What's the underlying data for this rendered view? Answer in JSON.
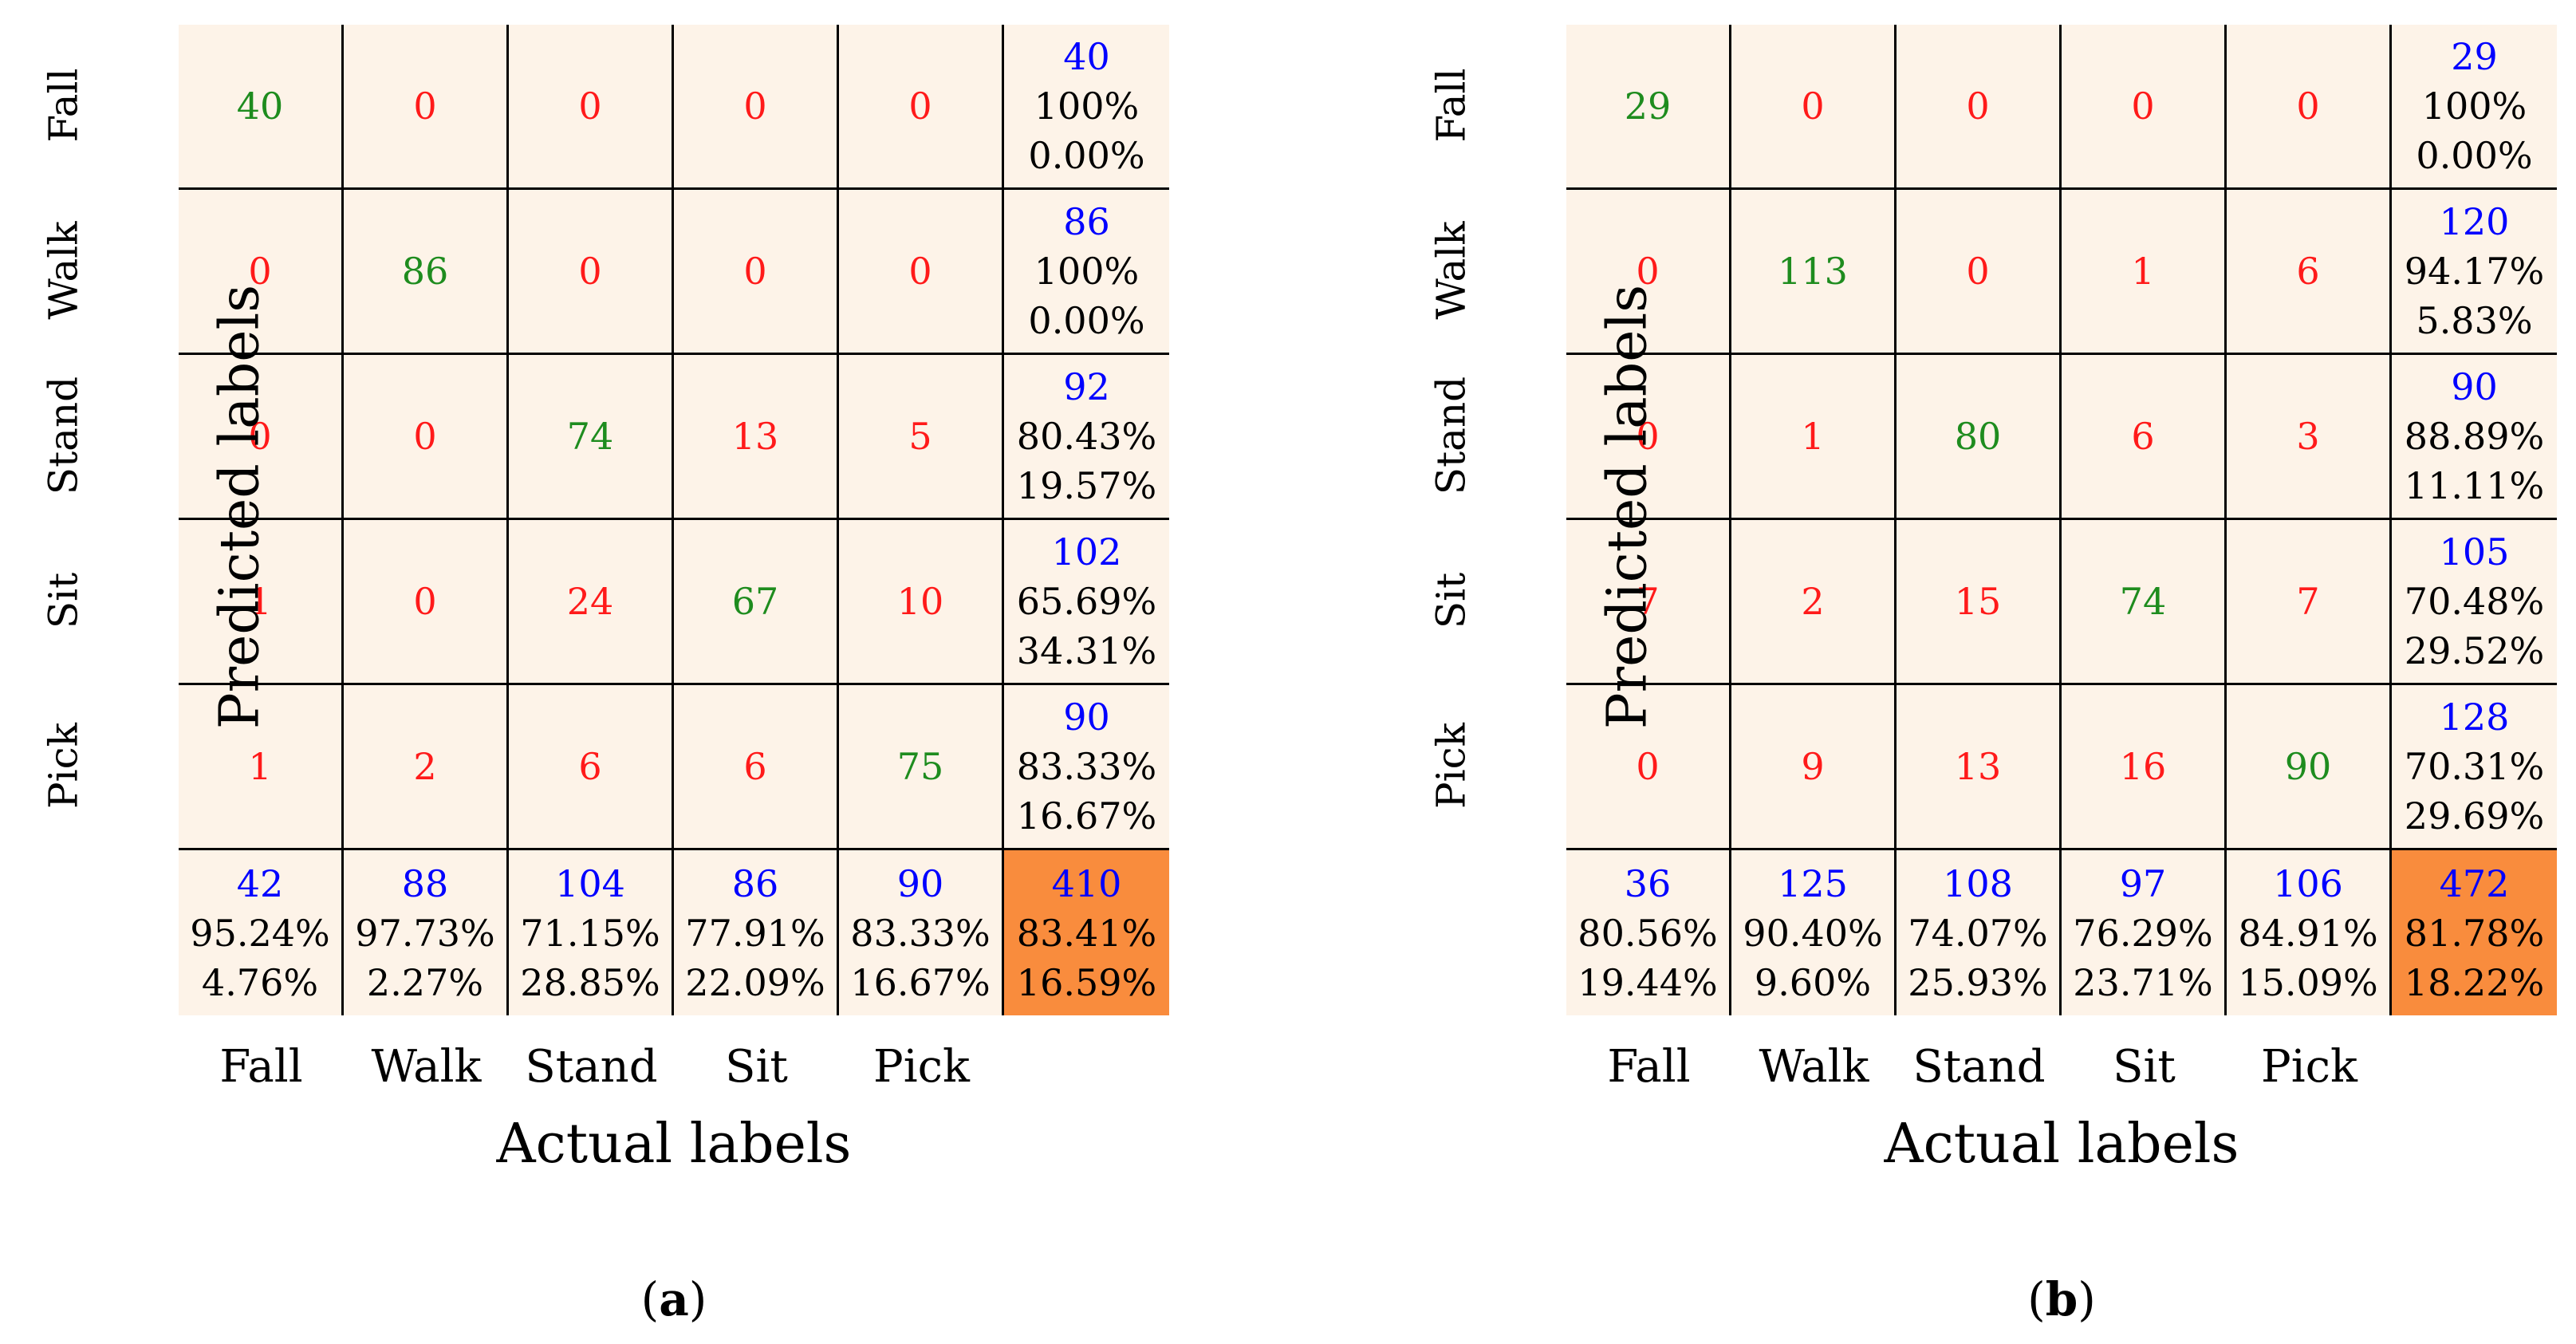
{
  "chart_data": [
    {
      "type": "table",
      "caption_letter": "a",
      "xlabel": "Actual labels",
      "ylabel": "Predicted labels",
      "categories": [
        "Fall",
        "Walk",
        "Stand",
        "Sit",
        "Pick"
      ],
      "matrix": [
        [
          "40",
          "0",
          "0",
          "0",
          "0"
        ],
        [
          "0",
          "86",
          "0",
          "0",
          "0"
        ],
        [
          "0",
          "0",
          "74",
          "13",
          "5"
        ],
        [
          "1",
          "0",
          "24",
          "67",
          "10"
        ],
        [
          "1",
          "2",
          "6",
          "6",
          "75"
        ]
      ],
      "row_summary": [
        {
          "total": "40",
          "correct": "100%",
          "error": "0.00%"
        },
        {
          "total": "86",
          "correct": "100%",
          "error": "0.00%"
        },
        {
          "total": "92",
          "correct": "80.43%",
          "error": "19.57%"
        },
        {
          "total": "102",
          "correct": "65.69%",
          "error": "34.31%"
        },
        {
          "total": "90",
          "correct": "83.33%",
          "error": "16.67%"
        }
      ],
      "col_summary": [
        {
          "total": "42",
          "correct": "95.24%",
          "error": "4.76%"
        },
        {
          "total": "88",
          "correct": "97.73%",
          "error": "2.27%"
        },
        {
          "total": "104",
          "correct": "71.15%",
          "error": "28.85%"
        },
        {
          "total": "86",
          "correct": "77.91%",
          "error": "22.09%"
        },
        {
          "total": "90",
          "correct": "83.33%",
          "error": "16.67%"
        }
      ],
      "overall": {
        "total": "410",
        "correct": "83.41%",
        "error": "16.59%"
      }
    },
    {
      "type": "table",
      "caption_letter": "b",
      "xlabel": "Actual labels",
      "ylabel": "Predicted labels",
      "categories": [
        "Fall",
        "Walk",
        "Stand",
        "Sit",
        "Pick"
      ],
      "matrix": [
        [
          "29",
          "0",
          "0",
          "0",
          "0"
        ],
        [
          "0",
          "113",
          "0",
          "1",
          "6"
        ],
        [
          "0",
          "1",
          "80",
          "6",
          "3"
        ],
        [
          "7",
          "2",
          "15",
          "74",
          "7"
        ],
        [
          "0",
          "9",
          "13",
          "16",
          "90"
        ]
      ],
      "row_summary": [
        {
          "total": "29",
          "correct": "100%",
          "error": "0.00%"
        },
        {
          "total": "120",
          "correct": "94.17%",
          "error": "5.83%"
        },
        {
          "total": "90",
          "correct": "88.89%",
          "error": "11.11%"
        },
        {
          "total": "105",
          "correct": "70.48%",
          "error": "29.52%"
        },
        {
          "total": "128",
          "correct": "70.31%",
          "error": "29.69%"
        }
      ],
      "col_summary": [
        {
          "total": "36",
          "correct": "80.56%",
          "error": "19.44%"
        },
        {
          "total": "125",
          "correct": "90.40%",
          "error": "9.60%"
        },
        {
          "total": "108",
          "correct": "74.07%",
          "error": "25.93%"
        },
        {
          "total": "97",
          "correct": "76.29%",
          "error": "23.71%"
        },
        {
          "total": "106",
          "correct": "84.91%",
          "error": "15.09%"
        }
      ],
      "overall": {
        "total": "472",
        "correct": "81.78%",
        "error": "18.22%"
      }
    }
  ],
  "colors": {
    "cell_bg": "#fdf3e8",
    "overall_bg": "#f98c3d",
    "correct": "#1e8c1e",
    "incorrect": "#ff1a1a",
    "total": "#0000ff"
  }
}
